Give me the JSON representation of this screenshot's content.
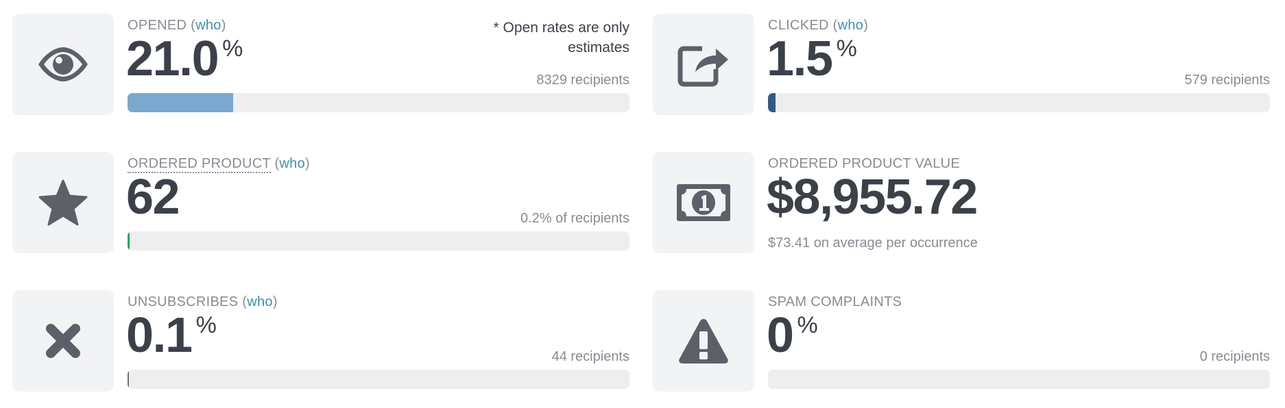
{
  "who_link": "who",
  "colors": {
    "accent_link": "#3d8fae",
    "opened_bar": "#7aa8cf",
    "clicked_bar": "#2f5b86",
    "ordered_bar": "#27a55a",
    "unsub_bar": "#6b6f75",
    "icon": "#5c6169"
  },
  "cards": {
    "opened": {
      "label": "OPENED",
      "value": "21.0",
      "unit": "%",
      "note": "* Open rates are only estimates",
      "recipients": "8329 recipients",
      "progress_pct": 21.0,
      "icon": "eye-icon"
    },
    "clicked": {
      "label": "CLICKED",
      "value": "1.5",
      "unit": "%",
      "recipients": "579 recipients",
      "progress_pct": 1.5,
      "icon": "external-link-icon"
    },
    "ordered": {
      "label": "ORDERED PRODUCT",
      "value": "62",
      "recipients": "0.2% of recipients",
      "progress_pct": 0.2,
      "icon": "star-icon"
    },
    "ordered_value": {
      "label": "ORDERED PRODUCT VALUE",
      "value": "$8,955.72",
      "average": "$73.41 on average per occurrence",
      "icon": "money-bill-icon"
    },
    "unsubscribes": {
      "label": "UNSUBSCRIBES",
      "value": "0.1",
      "unit": "%",
      "recipients": "44 recipients",
      "progress_pct": 0.1,
      "icon": "x-icon"
    },
    "spam": {
      "label": "SPAM COMPLAINTS",
      "value": "0",
      "unit": "%",
      "recipients": "0 recipients",
      "progress_pct": 0,
      "icon": "warning-icon"
    }
  }
}
